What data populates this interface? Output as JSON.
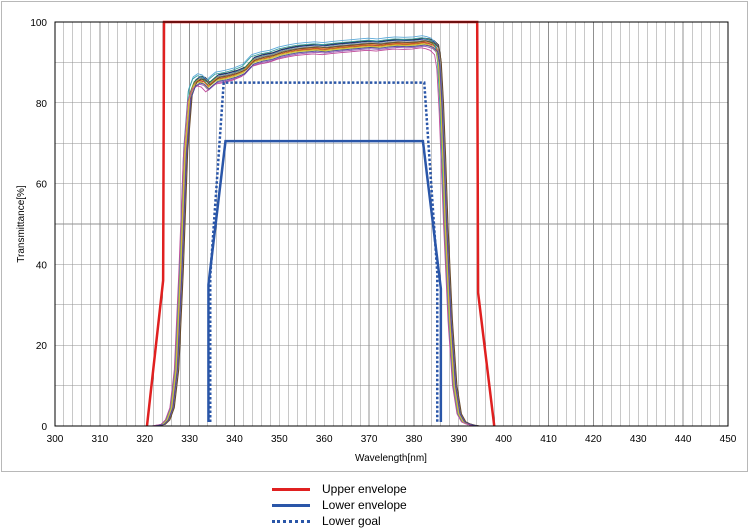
{
  "chart_data": {
    "type": "line",
    "xlabel": "Wavelength[nm]",
    "ylabel": "Transmittance[%]",
    "xlim": [
      300,
      450
    ],
    "ylim": [
      0,
      100
    ],
    "x_ticks": [
      300,
      310,
      320,
      330,
      340,
      350,
      360,
      370,
      380,
      390,
      400,
      410,
      420,
      430,
      440,
      450
    ],
    "y_ticks": [
      0,
      20,
      40,
      60,
      80,
      100
    ],
    "x_minor_step": 2,
    "y_minor_step": 10,
    "grid": true,
    "legend_position": "bottom",
    "colors": {
      "upper_envelope": "#e02020",
      "lower_envelope": "#2a56a8",
      "lower_goal": "#2a56a8",
      "grid": "#909090",
      "axis": "#000000"
    },
    "series": [
      {
        "name": "Upper envelope",
        "style": "solid",
        "x": [
          320.5,
          324.1,
          324.3,
          394.1,
          394.3,
          397.9
        ],
        "y": [
          0,
          36,
          100,
          100,
          33,
          0
        ]
      },
      {
        "name": "Lower envelope",
        "style": "solid",
        "x": [
          334.2,
          334.2,
          338.0,
          382.0,
          386.0,
          386.0
        ],
        "y": [
          1,
          35,
          70.5,
          70.5,
          34,
          1
        ]
      },
      {
        "name": "Lower goal",
        "style": "dotted",
        "x": [
          334.6,
          334.6,
          337.6,
          382.3,
          385.2,
          385.2
        ],
        "y": [
          1,
          37,
          85,
          85,
          38,
          1
        ]
      }
    ],
    "measured_curves": {
      "x": [
        300,
        320,
        322,
        324,
        325,
        326,
        327,
        328,
        329,
        330,
        331,
        332,
        333,
        334,
        335,
        336,
        337,
        338,
        340,
        342,
        344,
        346,
        348,
        350,
        352,
        354,
        356,
        358,
        360,
        362,
        364,
        366,
        368,
        370,
        372,
        374,
        376,
        378,
        380,
        382,
        383,
        384,
        385,
        385.5,
        386,
        386.5,
        387,
        388,
        389,
        390,
        391,
        392,
        393,
        394,
        396,
        400,
        450
      ],
      "base_y": [
        0,
        0,
        0,
        0.4,
        1.5,
        4.5,
        14,
        38,
        68,
        82,
        85,
        85.8,
        85.5,
        84.3,
        85.3,
        86.2,
        86.4,
        86.6,
        87.2,
        88.1,
        90.5,
        91.2,
        91.6,
        92.4,
        92.9,
        93.3,
        93.5,
        93.7,
        93.5,
        93.8,
        94.0,
        94.2,
        94.4,
        94.6,
        94.4,
        94.7,
        94.9,
        94.8,
        94.9,
        95.2,
        95.0,
        94.6,
        93.5,
        90,
        80,
        66,
        50,
        26,
        10,
        3,
        1,
        0.5,
        0.2,
        0,
        0,
        0,
        0
      ],
      "colors": [
        "#2b2b2b",
        "#5aa9d9",
        "#1f3f8f",
        "#2e8b3e",
        "#b02a2a",
        "#d9a520",
        "#8c8c8c",
        "#e07a2e",
        "#3aa0a0",
        "#9b59b6",
        "#c8c840",
        "#6b4a2a",
        "#c04a9a",
        "#4a4a9a"
      ],
      "offsets": [
        0.8,
        1.4,
        0.6,
        0.2,
        -0.3,
        -0.5,
        0.3,
        -0.1,
        0.9,
        -1.2,
        -0.7,
        0.1,
        -1.6,
        -0.9
      ],
      "xshifts": [
        0.5,
        -0.2,
        0.3,
        0,
        0.2,
        -0.1,
        0.4,
        0.1,
        -0.3,
        0.2,
        0,
        0.6,
        -0.4,
        0.3
      ]
    },
    "legend": [
      "Upper envelope",
      "Lower envelope",
      "Lower goal"
    ]
  }
}
